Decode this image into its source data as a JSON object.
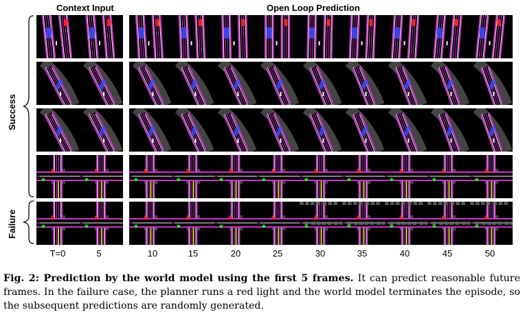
{
  "figure": {
    "header_context": "Context Input",
    "header_prediction": "Open Loop Prediction",
    "label_success": "Success",
    "label_failure": "Failure",
    "time_labels": [
      "T=0",
      "5",
      "10",
      "15",
      "20",
      "25",
      "30",
      "35",
      "40",
      "45",
      "50"
    ],
    "rows": [
      {
        "group": "success",
        "scene": "straight-road"
      },
      {
        "group": "success",
        "scene": "curving-road"
      },
      {
        "group": "success",
        "scene": "curving-road-sparse"
      },
      {
        "group": "success",
        "scene": "intersection"
      },
      {
        "group": "failure",
        "scene": "intersection-degrading"
      }
    ]
  },
  "caption": {
    "fig_label": "Fig. 2: Prediction by the world model using the first 5 frames.",
    "text": " It can predict reasonable future frames. In the failure case, the planner runs a red light and the world model terminates the episode, so the subsequent predictions are randomly generated."
  },
  "colors": {
    "frame_bg": "#000000",
    "lane_magenta": "#cc33cc",
    "lane_white": "#ffffff",
    "road_gray": "#444444",
    "route_yellow": "#f2ea2a",
    "vehicle_blue": "#3b4cff",
    "light_red": "#ff2020",
    "light_green": "#22dd22"
  }
}
